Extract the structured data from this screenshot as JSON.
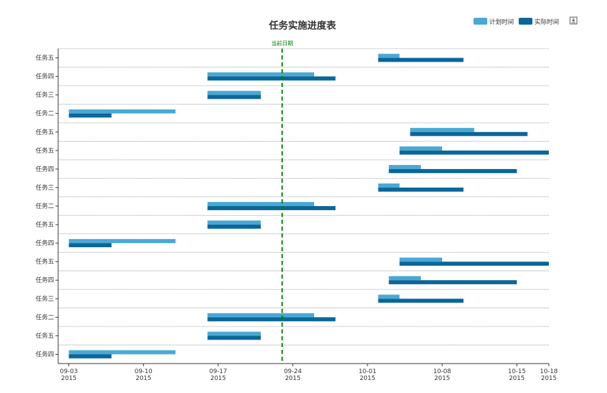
{
  "chart_data": {
    "type": "bar",
    "subtype": "gantt",
    "title": "任务实施进度表",
    "categories": [
      "任务四",
      "任务五",
      "任务二",
      "任务三",
      "任务四",
      "任务五",
      "任务四",
      "任务五",
      "任务二",
      "任务三",
      "任务四",
      "任务五",
      "任务五",
      "任务二",
      "任务三",
      "任务四",
      "任务五"
    ],
    "series": [
      {
        "name": "计划时间",
        "color": "#4aa8d4",
        "values": [
          [
            "2015-09-03",
            "2015-09-13"
          ],
          [
            "2015-09-16",
            "2015-09-21"
          ],
          [
            "2015-09-16",
            "2015-09-26"
          ],
          [
            "2015-10-02",
            "2015-10-04"
          ],
          [
            "2015-10-03",
            "2015-10-06"
          ],
          [
            "2015-10-04",
            "2015-10-08"
          ],
          [
            "2015-09-03",
            "2015-09-13"
          ],
          [
            "2015-09-16",
            "2015-09-21"
          ],
          [
            "2015-09-16",
            "2015-09-26"
          ],
          [
            "2015-10-02",
            "2015-10-04"
          ],
          [
            "2015-10-03",
            "2015-10-06"
          ],
          [
            "2015-10-04",
            "2015-10-08"
          ],
          [
            "2015-10-05",
            "2015-10-11"
          ],
          [
            "2015-09-03",
            "2015-09-13"
          ],
          [
            "2015-09-16",
            "2015-09-21"
          ],
          [
            "2015-09-16",
            "2015-09-26"
          ],
          [
            "2015-10-02",
            "2015-10-04"
          ]
        ]
      },
      {
        "name": "实际时间",
        "color": "#0b6699",
        "values": [
          [
            "2015-09-03",
            "2015-09-07"
          ],
          [
            "2015-09-16",
            "2015-09-21"
          ],
          [
            "2015-09-16",
            "2015-09-28"
          ],
          [
            "2015-10-02",
            "2015-10-10"
          ],
          [
            "2015-10-03",
            "2015-10-15"
          ],
          [
            "2015-10-04",
            "2015-10-18"
          ],
          [
            "2015-09-03",
            "2015-09-07"
          ],
          [
            "2015-09-16",
            "2015-09-21"
          ],
          [
            "2015-09-16",
            "2015-09-28"
          ],
          [
            "2015-10-02",
            "2015-10-10"
          ],
          [
            "2015-10-03",
            "2015-10-15"
          ],
          [
            "2015-10-04",
            "2015-10-18"
          ],
          [
            "2015-10-05",
            "2015-10-16"
          ],
          [
            "2015-09-03",
            "2015-09-07"
          ],
          [
            "2015-09-16",
            "2015-09-21"
          ],
          [
            "2015-09-16",
            "2015-09-28"
          ],
          [
            "2015-10-02",
            "2015-10-10"
          ]
        ]
      }
    ],
    "xlim": [
      "2015-09-02",
      "2015-10-18"
    ],
    "xticks": [
      {
        "date": "2015-09-03",
        "label": "09-03",
        "year": "2015"
      },
      {
        "date": "2015-09-10",
        "label": "09-10",
        "year": "2015"
      },
      {
        "date": "2015-09-17",
        "label": "09-17",
        "year": "2015"
      },
      {
        "date": "2015-09-24",
        "label": "09-24",
        "year": "2015"
      },
      {
        "date": "2015-10-01",
        "label": "10-01",
        "year": "2015"
      },
      {
        "date": "2015-10-08",
        "label": "10-08",
        "year": "2015"
      },
      {
        "date": "2015-10-15",
        "label": "10-15",
        "year": "2015"
      },
      {
        "date": "2015-10-18",
        "label": "10-18",
        "year": "2015"
      }
    ],
    "markline": {
      "label": "当前日期",
      "date": "2015-09-23",
      "color": "#008000"
    },
    "legend_position": "top-right",
    "grid": true
  },
  "toolbox": {
    "save_icon": "download-icon"
  }
}
